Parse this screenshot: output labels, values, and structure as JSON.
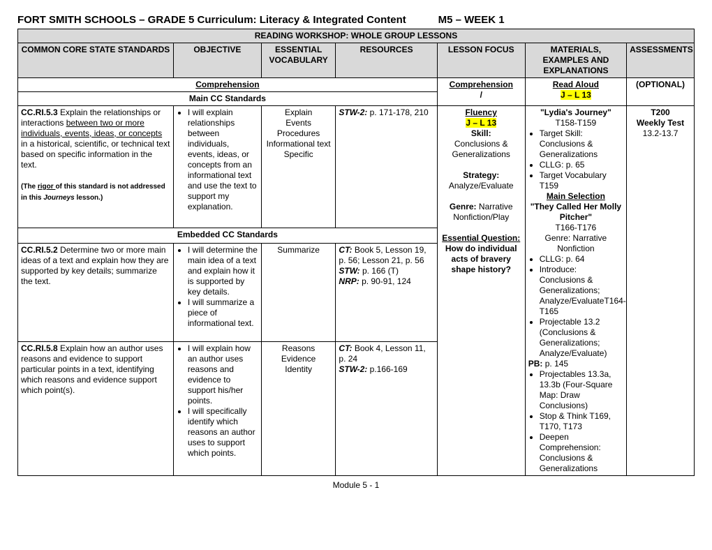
{
  "title_left": "FORT SMITH SCHOOLS – GRADE 5 Curriculum: Literacy & Integrated Content",
  "title_right": "M5 – WEEK 1",
  "section_header": "READING WORKSHOP: WHOLE GROUP LESSONS",
  "columns": {
    "c1": "COMMON CORE STATE STANDARDS",
    "c2": "OBJECTIVE",
    "c3": "ESSENTIAL VOCABULARY",
    "c4": "RESOURCES",
    "c5": "LESSON FOCUS",
    "c6": "MATERIALS, EXAMPLES AND EXPLANATIONS",
    "c7": "ASSESSMENTS"
  },
  "subheader": {
    "comp": "Comprehension",
    "main": "Main CC Standards",
    "comp2": "Comprehension",
    "slash": "/",
    "read": "Read Aloud",
    "jl": "J – L 13",
    "opt": "(OPTIONAL)"
  },
  "row1": {
    "std_code": "CC.RI.5.3",
    "std_text1": " Explain the relationships or interactions ",
    "std_u": "between two or more individuals, events, ideas, or concepts ",
    "std_text2": "in a historical, scientific, or technical text based on specific information in the text.",
    "std_note_pre": "(The ",
    "std_note_u": "rigor ",
    "std_note_mid": "of this standard is not addressed in this ",
    "std_note_i": "Journeys",
    "std_note_end": " lesson.)",
    "obj": "I will explain relationships between individuals, events, ideas, or concepts from an informational text and use the text to support my explanation.",
    "vocab": "Explain\nEvents\nProcedures\nInformational text\nSpecific",
    "res_b": "STW-2:",
    "res_t": " p. 171-178, 210",
    "focus_fluency": "Fluency",
    "focus_jl": "J – L 13",
    "focus_skill_h": "Skill:",
    "focus_skill_t": "Conclusions & Generalizations",
    "focus_strat_h": "Strategy:",
    "focus_strat_t": "Analyze/Evaluate",
    "focus_genre_h": "Genre:",
    "focus_genre_t": " Narrative Nonfiction/Play",
    "focus_eq_h": "Essential Question:",
    "focus_eq_t": "How do individual acts of bravery shape history?",
    "mat_lydia": "\"Lydia's Journey\"",
    "mat_lydia_p": "T158-T159",
    "mat_b1": "Target Skill: Conclusions & Generalizations",
    "mat_b2": "CLLG: p. 65",
    "mat_b3": "Target Vocabulary T159",
    "mat_main_h": "Main Selection",
    "mat_molly": "\"They Called Her Molly Pitcher\"",
    "mat_molly_p": "T166-T176",
    "mat_molly_g": "Genre: Narrative Nonfiction",
    "mat_b4": "CLLG: p. 64",
    "mat_b5": "Introduce: Conclusions & Generalizations; Analyze/EvaluateT164-T165",
    "mat_b6": "Projectable 13.2 (Conclusions & Generalizations; Analyze/Evaluate)",
    "mat_pb": "PB:",
    "mat_pb_t": " p. 145",
    "mat_b7": "Projectables 13.3a, 13.3b (Four-Square Map: Draw Conclusions)",
    "mat_b8": "Stop & Think T169, T170, T173",
    "mat_b9": "Deepen Comprehension: Conclusions & Generalizations",
    "assess_t200": "T200",
    "assess_wk": "Weekly Test",
    "assess_num": "13.2-13.7"
  },
  "embedded_header": "Embedded CC Standards",
  "row2": {
    "std_code": "CC.RI.5.2",
    "std_text": " Determine two or more main ideas of a text and explain how they are supported by key details; summarize the text.",
    "obj1": "I will determine the main idea of a text and explain how it is supported by key details.",
    "obj2": "I will summarize a piece of informational text.",
    "vocab": "Summarize",
    "res_ct_b": "CT:",
    "res_ct_t": " Book 5, Lesson 19, p. 56; Lesson 21, p. 56",
    "res_stw_b": "STW:",
    "res_stw_t": " p. 166 (T)",
    "res_nrp_b": "NRP:",
    "res_nrp_t": " p. 90-91, 124"
  },
  "row3": {
    "std_code": "CC.RI.5.8",
    "std_text": " Explain how an author uses reasons and evidence to support particular points in a text, identifying which reasons and evidence support which point(s).",
    "obj1": "I will explain how an author uses reasons and evidence to support his/her points.",
    "obj2": "I will specifically identify which reasons an author uses to support which points.",
    "vocab": "Reasons\nEvidence\nIdentity",
    "res_ct_b": "CT:",
    "res_ct_t": " Book 4, Lesson 11, p. 24",
    "res_stw_b": "STW-2:",
    "res_stw_t": " p.166-169"
  },
  "footer": "Module 5 - 1",
  "colwidths": [
    "23%",
    "13%",
    "11%",
    "15%",
    "13%",
    "15%",
    "10%"
  ]
}
